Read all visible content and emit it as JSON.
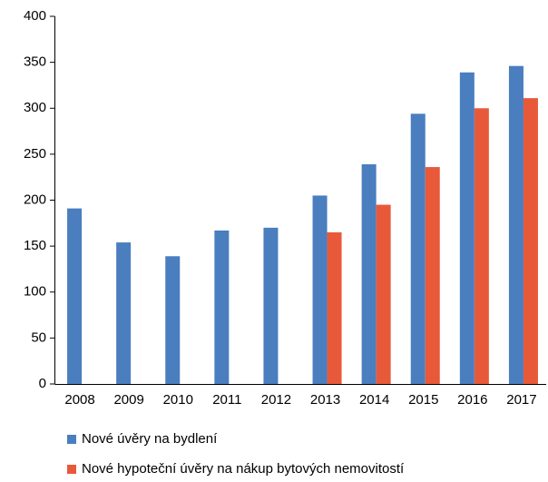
{
  "chart_data": {
    "type": "bar",
    "categories": [
      "2008",
      "2009",
      "2010",
      "2011",
      "2012",
      "2013",
      "2014",
      "2015",
      "2016",
      "2017"
    ],
    "series": [
      {
        "name": "Nové úvěry na bydlení",
        "color": "#4a7ebf",
        "values": [
          191,
          154,
          139,
          167,
          170,
          205,
          239,
          294,
          339,
          346
        ]
      },
      {
        "name": "Nové hypoteční úvěry na nákup bytových nemovitostí",
        "color": "#e8593a",
        "values": [
          null,
          null,
          null,
          null,
          null,
          165,
          195,
          236,
          300,
          311
        ]
      }
    ],
    "ylim": [
      0,
      400
    ],
    "yticks": [
      0,
      50,
      100,
      150,
      200,
      250,
      300,
      350,
      400
    ],
    "grid": false
  }
}
